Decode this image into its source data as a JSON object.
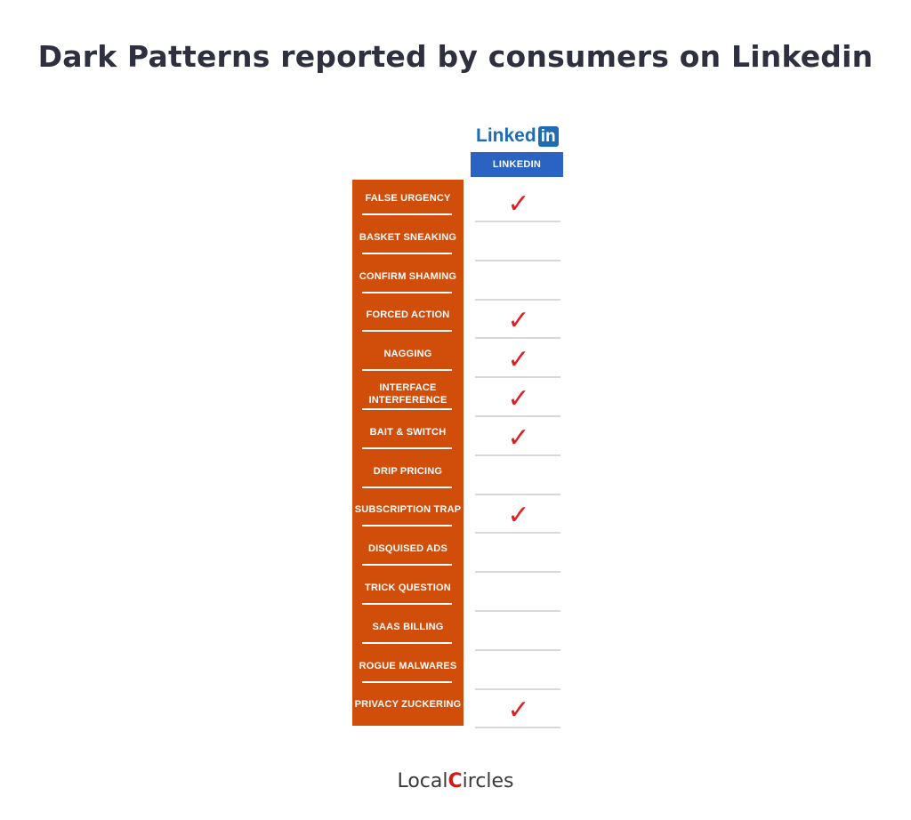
{
  "title": "Dark Patterns reported by consumers on Linkedin",
  "brand_logo": {
    "text": "Linked",
    "badge": "in"
  },
  "chart_data": {
    "type": "table",
    "column": "LINKEDIN",
    "rows": [
      {
        "label": "FALSE URGENCY",
        "checked": true
      },
      {
        "label": "BASKET SNEAKING",
        "checked": false
      },
      {
        "label": "CONFIRM SHAMING",
        "checked": false
      },
      {
        "label": "FORCED ACTION",
        "checked": true
      },
      {
        "label": "NAGGING",
        "checked": true
      },
      {
        "label": "INTERFACE INTERFERENCE",
        "checked": true
      },
      {
        "label": "BAIT & SWITCH",
        "checked": true
      },
      {
        "label": "DRIP PRICING",
        "checked": false
      },
      {
        "label": "SUBSCRIPTION TRAP",
        "checked": true
      },
      {
        "label": "DISQUISED ADS",
        "checked": false
      },
      {
        "label": "TRICK QUESTION",
        "checked": false
      },
      {
        "label": "SAAS BILLING",
        "checked": false
      },
      {
        "label": "ROGUE MALWARES",
        "checked": false
      },
      {
        "label": "PRIVACY ZUCKERING",
        "checked": true
      }
    ]
  },
  "check_mark": "✓",
  "colors": {
    "label_panel": "#d14d0a",
    "header": "#2a63c2",
    "check": "#e21d24"
  },
  "footer": {
    "logo_left": "Local",
    "logo_mark": "C",
    "logo_right": "ircles"
  }
}
